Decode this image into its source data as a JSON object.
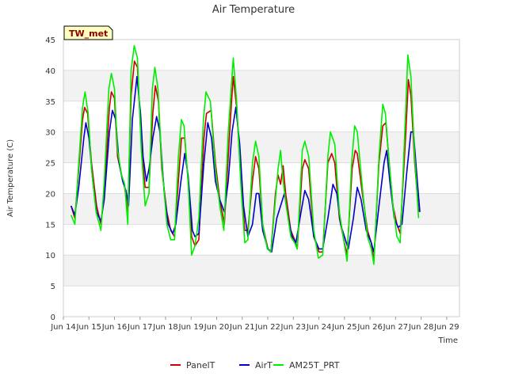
{
  "chart_data": {
    "type": "line",
    "title": "Air Temperature",
    "xlabel": "Time",
    "ylabel": "Air Temperature (C)",
    "badge": "TW_met",
    "ylim": [
      0,
      45
    ],
    "yticks": [
      0,
      5,
      10,
      15,
      20,
      25,
      30,
      35,
      40,
      45
    ],
    "xlim": [
      13.5,
      29
    ],
    "xticks": [
      {
        "v": 13.5,
        "label": "Jun 14"
      },
      {
        "v": 14.5,
        "label": "Jun 15"
      },
      {
        "v": 15.5,
        "label": "Jun 16"
      },
      {
        "v": 16.5,
        "label": "Jun 17"
      },
      {
        "v": 17.5,
        "label": "Jun 18"
      },
      {
        "v": 18.5,
        "label": "Jun 19"
      },
      {
        "v": 19.5,
        "label": "Jun 20"
      },
      {
        "v": 20.5,
        "label": "Jun 21"
      },
      {
        "v": 21.5,
        "label": "Jun 22"
      },
      {
        "v": 22.5,
        "label": "Jun 23"
      },
      {
        "v": 23.5,
        "label": "Jun 24"
      },
      {
        "v": 24.5,
        "label": "Jun 25"
      },
      {
        "v": 25.5,
        "label": "Jun 26"
      },
      {
        "v": 26.5,
        "label": "Jun 27"
      },
      {
        "v": 27.5,
        "label": "Jun 28"
      },
      {
        "v": 28.5,
        "label": "Jun 29"
      }
    ],
    "series": [
      {
        "name": "PanelT",
        "color": "#cc0000",
        "points": [
          [
            13.8,
            18
          ],
          [
            13.95,
            16
          ],
          [
            14.1,
            24
          ],
          [
            14.25,
            32
          ],
          [
            14.33,
            34
          ],
          [
            14.45,
            33
          ],
          [
            14.6,
            25
          ],
          [
            14.8,
            18
          ],
          [
            14.97,
            15
          ],
          [
            15.1,
            20
          ],
          [
            15.3,
            34
          ],
          [
            15.38,
            36.5
          ],
          [
            15.5,
            35.5
          ],
          [
            15.62,
            26
          ],
          [
            15.78,
            23
          ],
          [
            15.9,
            21
          ],
          [
            16.02,
            17
          ],
          [
            16.15,
            36
          ],
          [
            16.28,
            41.5
          ],
          [
            16.4,
            40.5
          ],
          [
            16.55,
            28
          ],
          [
            16.7,
            21
          ],
          [
            16.85,
            21
          ],
          [
            17.0,
            33
          ],
          [
            17.1,
            37.5
          ],
          [
            17.22,
            35
          ],
          [
            17.35,
            24
          ],
          [
            17.55,
            17
          ],
          [
            17.7,
            14
          ],
          [
            17.85,
            13
          ],
          [
            18.0,
            22
          ],
          [
            18.12,
            29
          ],
          [
            18.25,
            29
          ],
          [
            18.38,
            22
          ],
          [
            18.52,
            13
          ],
          [
            18.65,
            11.5
          ],
          [
            18.8,
            12.5
          ],
          [
            19.0,
            29
          ],
          [
            19.1,
            33
          ],
          [
            19.28,
            33.5
          ],
          [
            19.45,
            25
          ],
          [
            19.62,
            19
          ],
          [
            19.8,
            15
          ],
          [
            19.95,
            26
          ],
          [
            20.08,
            35
          ],
          [
            20.15,
            39
          ],
          [
            20.28,
            34
          ],
          [
            20.45,
            22
          ],
          [
            20.6,
            14
          ],
          [
            20.72,
            14
          ],
          [
            20.9,
            22
          ],
          [
            21.02,
            26
          ],
          [
            21.15,
            24
          ],
          [
            21.3,
            15
          ],
          [
            21.5,
            11
          ],
          [
            21.62,
            10.5
          ],
          [
            21.8,
            20
          ],
          [
            21.9,
            23
          ],
          [
            22.0,
            21.5
          ],
          [
            22.1,
            24.5
          ],
          [
            22.2,
            20
          ],
          [
            22.4,
            14
          ],
          [
            22.55,
            12.5
          ],
          [
            22.65,
            11
          ],
          [
            22.85,
            24
          ],
          [
            22.95,
            25.5
          ],
          [
            23.1,
            24
          ],
          [
            23.3,
            13
          ],
          [
            23.5,
            10.5
          ],
          [
            23.65,
            10.5
          ],
          [
            23.85,
            25
          ],
          [
            24.0,
            26.5
          ],
          [
            24.12,
            25
          ],
          [
            24.3,
            16
          ],
          [
            24.45,
            13
          ],
          [
            24.6,
            10
          ],
          [
            24.8,
            24
          ],
          [
            24.92,
            27
          ],
          [
            25.0,
            26.5
          ],
          [
            25.2,
            20
          ],
          [
            25.4,
            14
          ],
          [
            25.55,
            12
          ],
          [
            25.65,
            9
          ],
          [
            25.85,
            25
          ],
          [
            26.0,
            31
          ],
          [
            26.12,
            31.5
          ],
          [
            26.25,
            25
          ],
          [
            26.4,
            18
          ],
          [
            26.55,
            15
          ],
          [
            26.68,
            13.5
          ],
          [
            26.9,
            30
          ],
          [
            27.0,
            38.5
          ],
          [
            27.1,
            36
          ],
          [
            27.25,
            25
          ],
          [
            27.4,
            17
          ]
        ]
      },
      {
        "name": "AirT",
        "color": "#0000cc",
        "points": [
          [
            13.8,
            18
          ],
          [
            13.95,
            16.5
          ],
          [
            14.1,
            21
          ],
          [
            14.3,
            29
          ],
          [
            14.38,
            31.5
          ],
          [
            14.5,
            29
          ],
          [
            14.65,
            22
          ],
          [
            14.8,
            17
          ],
          [
            14.97,
            15.5
          ],
          [
            15.1,
            19
          ],
          [
            15.3,
            30
          ],
          [
            15.42,
            33.5
          ],
          [
            15.55,
            32
          ],
          [
            15.68,
            25
          ],
          [
            15.82,
            22
          ],
          [
            15.95,
            20.5
          ],
          [
            16.05,
            18
          ],
          [
            16.2,
            32
          ],
          [
            16.38,
            39
          ],
          [
            16.52,
            33
          ],
          [
            16.62,
            26
          ],
          [
            16.75,
            22
          ],
          [
            16.85,
            24
          ],
          [
            17.0,
            29
          ],
          [
            17.15,
            32.5
          ],
          [
            17.28,
            30
          ],
          [
            17.45,
            20
          ],
          [
            17.6,
            15
          ],
          [
            17.78,
            13.5
          ],
          [
            17.9,
            15
          ],
          [
            18.1,
            22
          ],
          [
            18.25,
            26.5
          ],
          [
            18.38,
            23
          ],
          [
            18.55,
            14
          ],
          [
            18.65,
            13
          ],
          [
            18.8,
            13.5
          ],
          [
            19.0,
            25
          ],
          [
            19.15,
            31.5
          ],
          [
            19.3,
            29
          ],
          [
            19.45,
            22
          ],
          [
            19.62,
            19
          ],
          [
            19.8,
            17
          ],
          [
            19.95,
            22
          ],
          [
            20.1,
            30
          ],
          [
            20.25,
            34
          ],
          [
            20.4,
            28
          ],
          [
            20.55,
            18
          ],
          [
            20.72,
            13
          ],
          [
            20.9,
            15
          ],
          [
            21.05,
            20
          ],
          [
            21.15,
            20
          ],
          [
            21.3,
            14
          ],
          [
            21.5,
            11
          ],
          [
            21.65,
            10.5
          ],
          [
            21.85,
            16
          ],
          [
            22.0,
            18
          ],
          [
            22.15,
            20
          ],
          [
            22.3,
            16
          ],
          [
            22.45,
            13
          ],
          [
            22.6,
            12
          ],
          [
            22.8,
            17
          ],
          [
            22.95,
            20.5
          ],
          [
            23.1,
            19
          ],
          [
            23.3,
            13
          ],
          [
            23.5,
            11
          ],
          [
            23.65,
            11
          ],
          [
            23.85,
            16
          ],
          [
            24.05,
            21.5
          ],
          [
            24.2,
            20
          ],
          [
            24.35,
            15
          ],
          [
            24.5,
            13
          ],
          [
            24.65,
            11
          ],
          [
            24.85,
            16
          ],
          [
            25.0,
            21
          ],
          [
            25.15,
            19
          ],
          [
            25.35,
            14
          ],
          [
            25.55,
            12
          ],
          [
            25.65,
            10.5
          ],
          [
            25.85,
            18
          ],
          [
            26.05,
            25
          ],
          [
            26.15,
            27
          ],
          [
            26.3,
            21
          ],
          [
            26.45,
            16
          ],
          [
            26.6,
            14.5
          ],
          [
            26.75,
            15
          ],
          [
            26.95,
            24
          ],
          [
            27.1,
            30
          ],
          [
            27.2,
            30
          ],
          [
            27.35,
            22
          ],
          [
            27.45,
            17
          ]
        ]
      },
      {
        "name": "AM25T_PRT",
        "color": "#00ee00",
        "points": [
          [
            13.8,
            16.5
          ],
          [
            13.95,
            15
          ],
          [
            14.1,
            25
          ],
          [
            14.25,
            34
          ],
          [
            14.35,
            36.5
          ],
          [
            14.47,
            33
          ],
          [
            14.6,
            24
          ],
          [
            14.78,
            17
          ],
          [
            14.97,
            14
          ],
          [
            15.1,
            22
          ],
          [
            15.28,
            37
          ],
          [
            15.38,
            39.5
          ],
          [
            15.5,
            37
          ],
          [
            15.62,
            27
          ],
          [
            15.78,
            23
          ],
          [
            15.9,
            21.5
          ],
          [
            16.02,
            15
          ],
          [
            16.15,
            40
          ],
          [
            16.27,
            44
          ],
          [
            16.4,
            42
          ],
          [
            16.55,
            27
          ],
          [
            16.7,
            18
          ],
          [
            16.85,
            20
          ],
          [
            16.98,
            37
          ],
          [
            17.08,
            40.5
          ],
          [
            17.2,
            37
          ],
          [
            17.35,
            25
          ],
          [
            17.55,
            15
          ],
          [
            17.7,
            12.5
          ],
          [
            17.85,
            12.5
          ],
          [
            18.0,
            26
          ],
          [
            18.12,
            32
          ],
          [
            18.22,
            31
          ],
          [
            18.38,
            22
          ],
          [
            18.52,
            10
          ],
          [
            18.65,
            11.5
          ],
          [
            18.8,
            16
          ],
          [
            18.98,
            32
          ],
          [
            19.08,
            36.5
          ],
          [
            19.25,
            35
          ],
          [
            19.45,
            24
          ],
          [
            19.62,
            18
          ],
          [
            19.78,
            14
          ],
          [
            19.95,
            30
          ],
          [
            20.08,
            38
          ],
          [
            20.15,
            42
          ],
          [
            20.28,
            35
          ],
          [
            20.45,
            21
          ],
          [
            20.6,
            12
          ],
          [
            20.72,
            12.5
          ],
          [
            20.9,
            25
          ],
          [
            21.02,
            28.5
          ],
          [
            21.15,
            26
          ],
          [
            21.3,
            15
          ],
          [
            21.48,
            11
          ],
          [
            21.62,
            10.5
          ],
          [
            21.8,
            19
          ],
          [
            21.9,
            24
          ],
          [
            22.0,
            27
          ],
          [
            22.1,
            22
          ],
          [
            22.22,
            18
          ],
          [
            22.4,
            13
          ],
          [
            22.55,
            12
          ],
          [
            22.65,
            11
          ],
          [
            22.85,
            27
          ],
          [
            22.95,
            28.5
          ],
          [
            23.1,
            26
          ],
          [
            23.3,
            14
          ],
          [
            23.48,
            9.5
          ],
          [
            23.65,
            10
          ],
          [
            23.85,
            26
          ],
          [
            23.95,
            30
          ],
          [
            24.12,
            28
          ],
          [
            24.3,
            17
          ],
          [
            24.45,
            13
          ],
          [
            24.6,
            9
          ],
          [
            24.78,
            25
          ],
          [
            24.9,
            31
          ],
          [
            25.0,
            30
          ],
          [
            25.2,
            21
          ],
          [
            25.4,
            13
          ],
          [
            25.55,
            11
          ],
          [
            25.65,
            8.5
          ],
          [
            25.85,
            26
          ],
          [
            26.0,
            34.5
          ],
          [
            26.1,
            33
          ],
          [
            26.25,
            25
          ],
          [
            26.4,
            18
          ],
          [
            26.55,
            13
          ],
          [
            26.68,
            12
          ],
          [
            26.88,
            32
          ],
          [
            26.98,
            42.5
          ],
          [
            27.1,
            39
          ],
          [
            27.25,
            26
          ],
          [
            27.4,
            16
          ]
        ]
      }
    ]
  }
}
